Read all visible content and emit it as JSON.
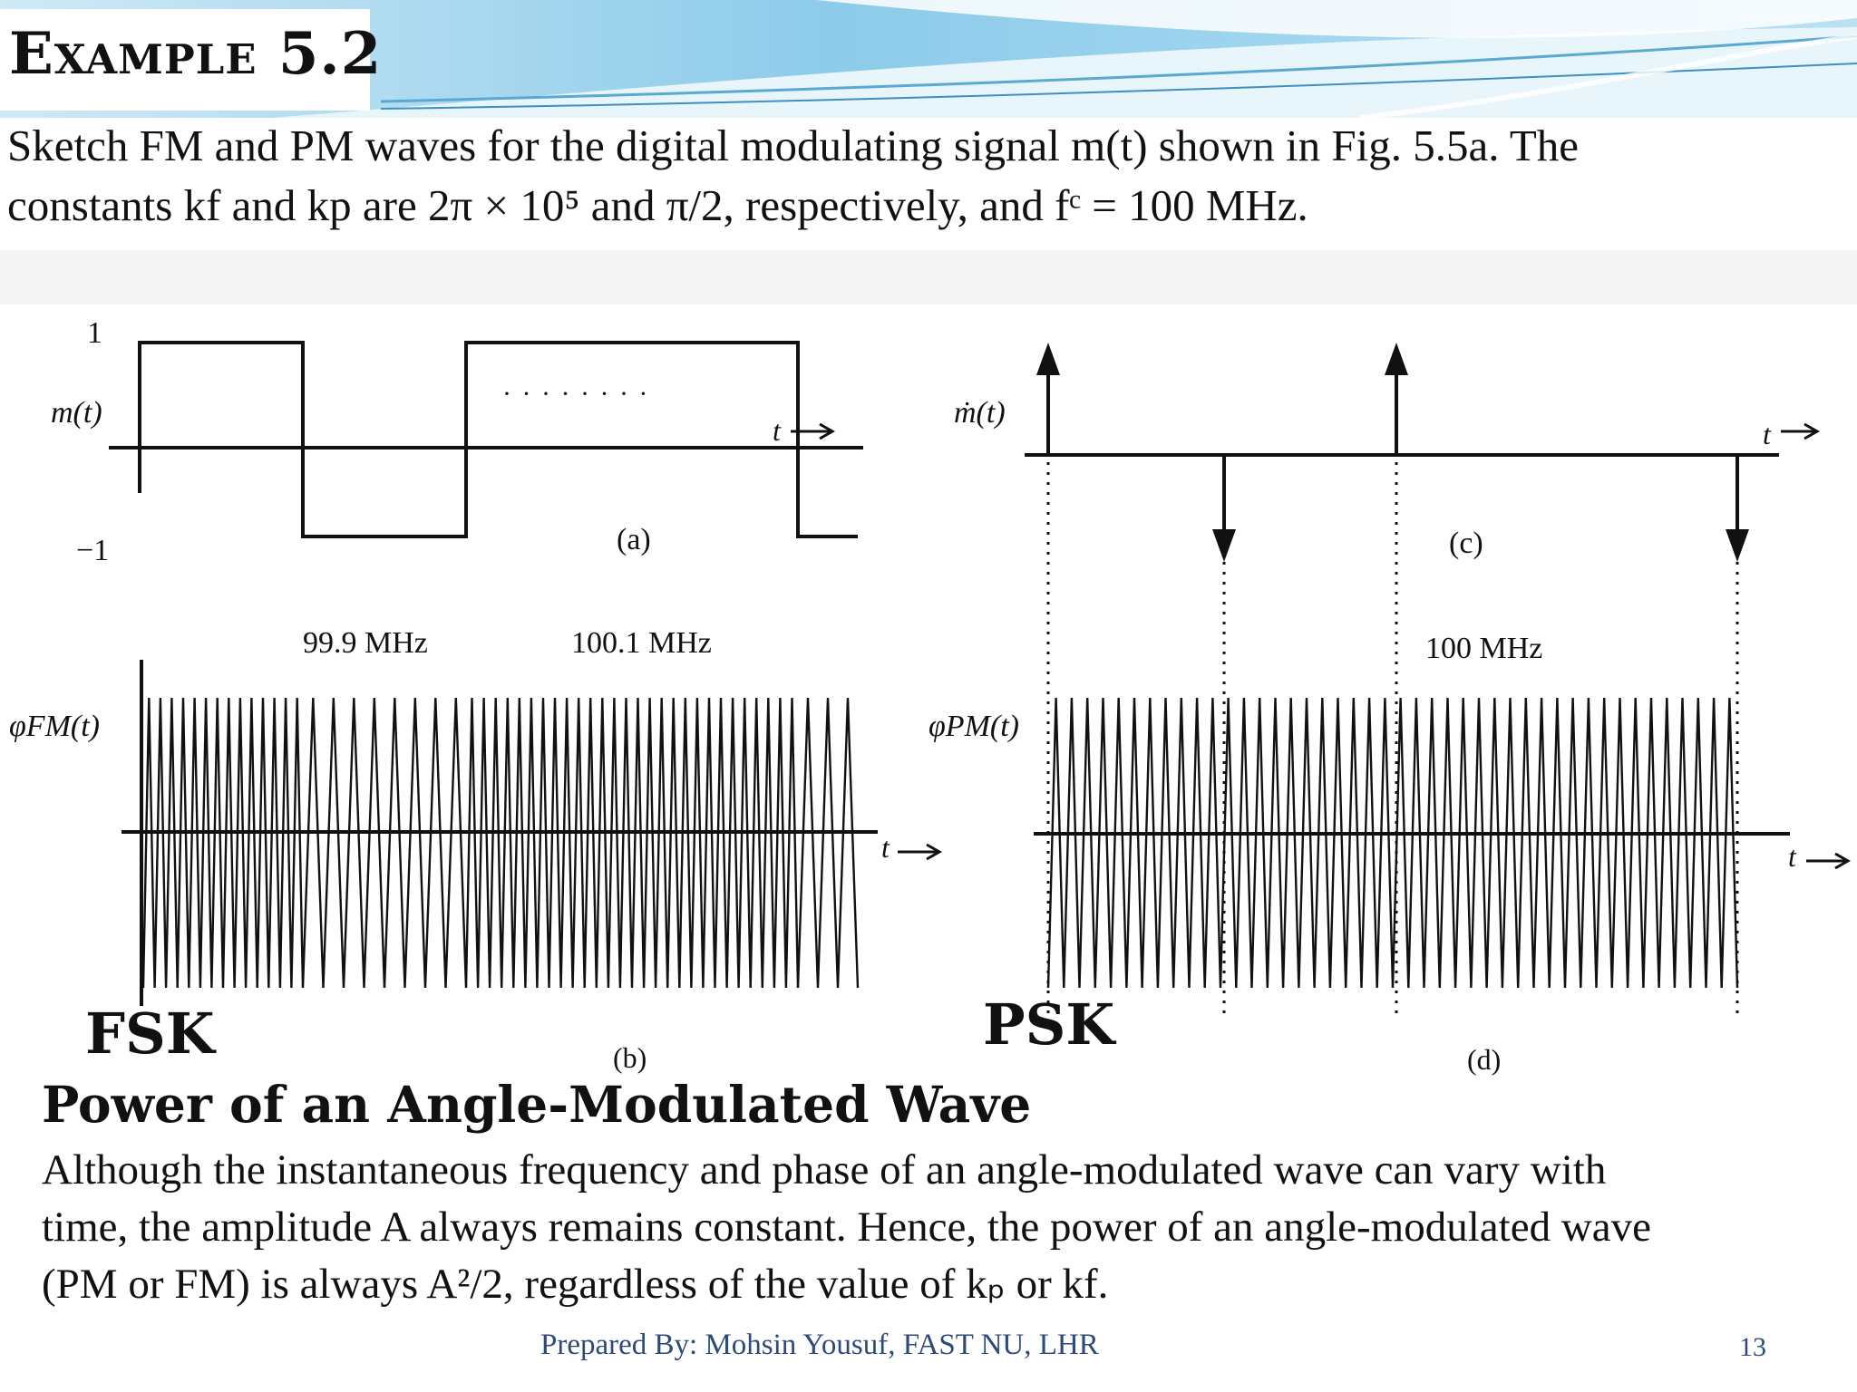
{
  "slide": {
    "title": "Example 5.2",
    "problem": {
      "line1": "Sketch FM and PM waves for the digital modulating signal m(t) shown in Fig. 5.5a. The",
      "line2": "constants kf and kp are 2π × 10⁵ and π/2, respectively, and fᶜ = 100 MHz."
    }
  },
  "figure": {
    "a": {
      "label": "(a)",
      "ylabel": "m(t)",
      "tick_pos": "1",
      "tick_neg": "−1",
      "t_label": "t",
      "levels": [
        1,
        -1,
        1,
        -1
      ],
      "ellipsis": "· · · · · · · ·"
    },
    "b": {
      "label": "(b)",
      "ylabel": "φFM(t)",
      "t_label": "t",
      "freq_low": "99.9 MHz",
      "freq_high": "100.1 MHz",
      "tag": "FSK"
    },
    "c": {
      "label": "(c)",
      "ylabel": "ṁ(t)",
      "t_label": "t",
      "impulse_signs": [
        1,
        -1,
        1,
        -1
      ]
    },
    "d": {
      "label": "(d)",
      "ylabel": "φPM(t)",
      "t_label": "t",
      "freq": "100 MHz",
      "tag": "PSK"
    }
  },
  "section": {
    "heading": "Power of an Angle-Modulated Wave",
    "body1": "Although the instantaneous frequency and phase of an angle-modulated wave can vary with",
    "body2": "time, the amplitude A always remains constant. Hence, the power of an angle-modulated wave",
    "body3": "(PM or FM) is always A²/2, regardless of the value of kₚ or kf."
  },
  "footer": {
    "text": "Prepared By: Mohsin Yousuf, FAST NU, LHR",
    "page": "13"
  },
  "colors": {
    "banner_light": "#d8eef8",
    "banner_mid": "#9fd2ec",
    "banner_dark": "#5fb3dd",
    "footer_text": "#2c4a7a"
  }
}
